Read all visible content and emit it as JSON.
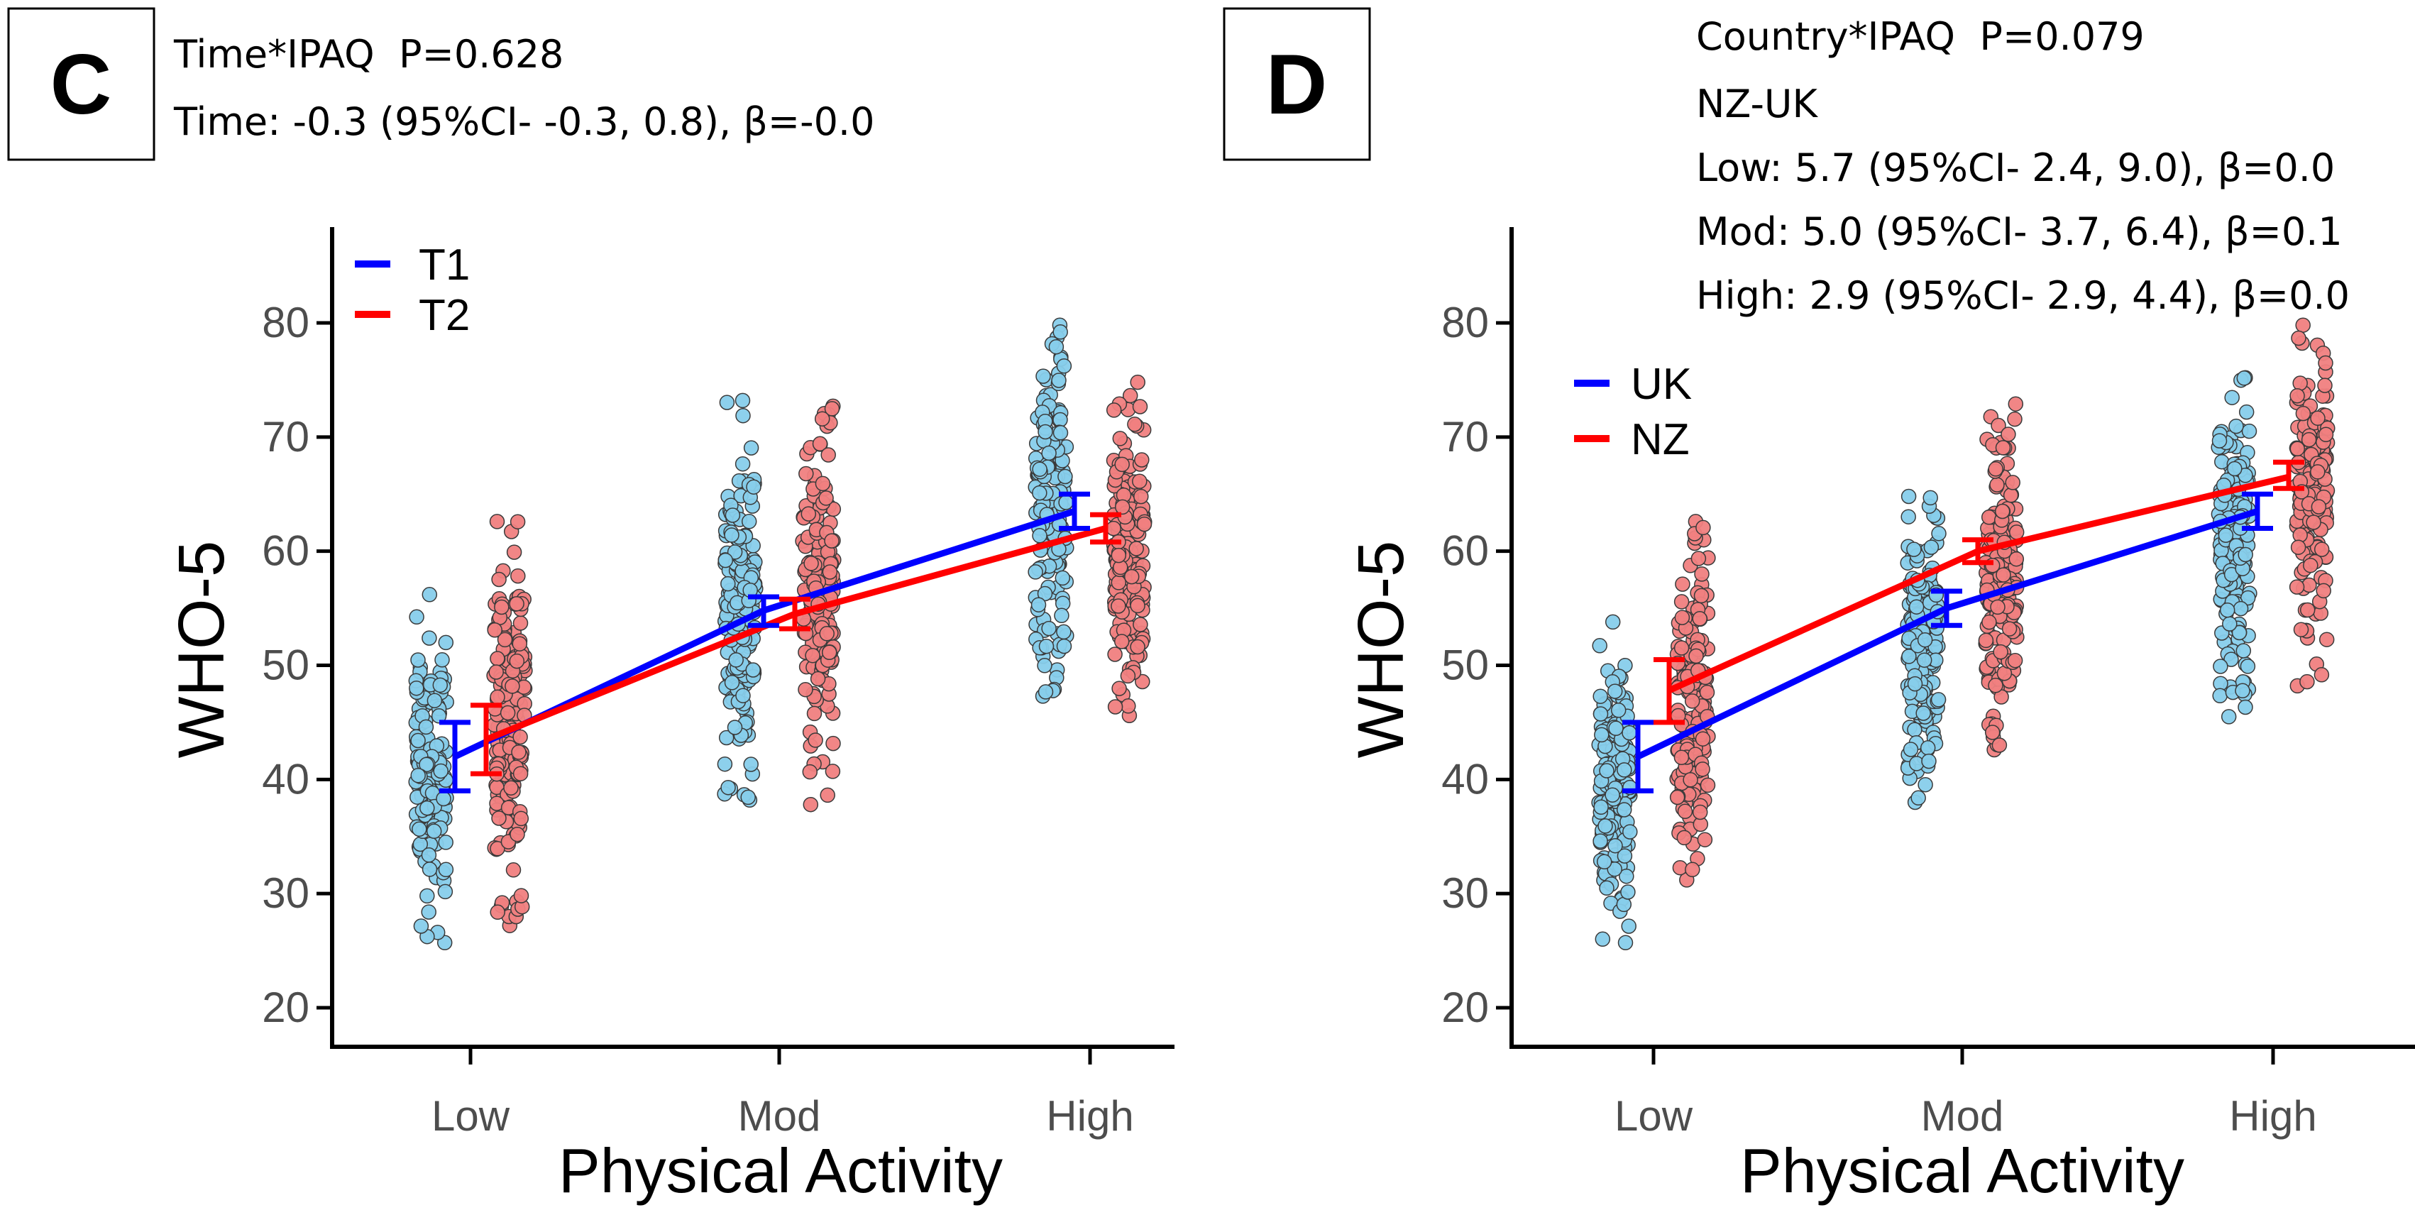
{
  "panels": [
    {
      "letter": "C",
      "stats": [
        "Time*IPAQ  P=0.628",
        "Time: -0.3 (95%CI- -0.3, 0.8), β=-0.0"
      ]
    },
    {
      "letter": "D",
      "stats": [
        "Country*IPAQ  P=0.079",
        "NZ-UK",
        "Low: 5.7 (95%CI- 2.4, 9.0), β=0.0",
        "Mod: 5.0 (95%CI- 3.7, 6.4), β=0.1",
        "High: 2.9 (95%CI- 2.9, 4.4), β=0.0"
      ]
    }
  ],
  "chart_data": [
    {
      "type": "line",
      "panel": "C",
      "title": "",
      "xlabel": "Physical Activity",
      "ylabel": "WHO-5",
      "categories": [
        "Low",
        "Mod",
        "High"
      ],
      "ylim": [
        17,
        87
      ],
      "yticks": [
        20,
        30,
        40,
        50,
        60,
        70,
        80
      ],
      "grid": false,
      "legend_position": "top-left",
      "series": [
        {
          "name": "T1",
          "color": "#0000ff",
          "point_color": "#87ceeb",
          "means": [
            42.0,
            54.8,
            63.5
          ],
          "ci_low": [
            39.0,
            53.5,
            62.0
          ],
          "ci_high": [
            45.0,
            56.0,
            65.0
          ],
          "scatter_ranges": [
            [
              25.7,
              56.2
            ],
            [
              38.2,
              73.2
            ],
            [
              47.3,
              79.8
            ]
          ]
        },
        {
          "name": "T2",
          "color": "#ff0000",
          "point_color": "#f08080",
          "means": [
            43.5,
            54.5,
            62.0
          ],
          "ci_low": [
            40.5,
            53.2,
            60.8
          ],
          "ci_high": [
            46.5,
            55.8,
            63.2
          ],
          "scatter_ranges": [
            [
              27.2,
              62.6
            ],
            [
              37.8,
              72.7
            ],
            [
              45.6,
              74.8
            ]
          ]
        }
      ]
    },
    {
      "type": "line",
      "panel": "D",
      "title": "",
      "xlabel": "Physical Activity",
      "ylabel": "WHO-5",
      "categories": [
        "Low",
        "Mod",
        "High"
      ],
      "ylim": [
        17,
        87
      ],
      "yticks": [
        20,
        30,
        40,
        50,
        60,
        70,
        80
      ],
      "grid": false,
      "legend_position": "top-left",
      "series": [
        {
          "name": "UK",
          "color": "#0000ff",
          "point_color": "#87ceeb",
          "means": [
            42.0,
            55.0,
            63.5
          ],
          "ci_low": [
            39.0,
            53.5,
            62.0
          ],
          "ci_high": [
            45.0,
            56.5,
            65.0
          ],
          "scatter_ranges": [
            [
              25.7,
              53.8
            ],
            [
              38.0,
              64.8
            ],
            [
              45.5,
              75.2
            ]
          ]
        },
        {
          "name": "NZ",
          "color": "#ff0000",
          "point_color": "#f08080",
          "means": [
            47.8,
            60.0,
            66.5
          ],
          "ci_low": [
            45.0,
            59.0,
            65.5
          ],
          "ci_high": [
            50.5,
            61.0,
            67.8
          ],
          "scatter_ranges": [
            [
              31.2,
              62.6
            ],
            [
              42.6,
              72.9
            ],
            [
              48.2,
              79.8
            ]
          ]
        }
      ]
    }
  ]
}
